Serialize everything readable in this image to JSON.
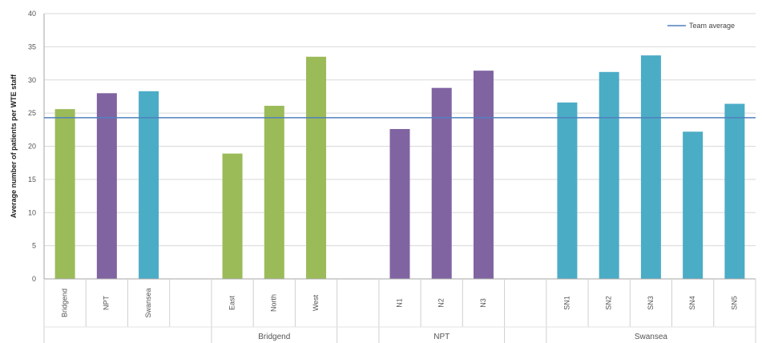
{
  "chart_data": {
    "type": "bar",
    "ylabel": "Average number of patients per WTE staff",
    "ylim": [
      0,
      40
    ],
    "yticks": [
      0,
      5,
      10,
      15,
      20,
      25,
      30,
      35,
      40
    ],
    "grid": true,
    "legend_position": "top-right",
    "categories": [
      "Bridgend",
      "NPT",
      "Swansea",
      "",
      "East",
      "North",
      "West",
      "",
      "N1",
      "N2",
      "N3",
      "",
      "SN1",
      "SN2",
      "SN3",
      "SN4",
      "SN5"
    ],
    "values": [
      25.6,
      28.0,
      28.3,
      null,
      18.9,
      26.1,
      33.5,
      null,
      22.6,
      28.8,
      31.4,
      null,
      26.6,
      31.2,
      33.7,
      22.2,
      26.4
    ],
    "bar_colors": [
      "#9bbb59",
      "#8064a2",
      "#4bacc6",
      null,
      "#9bbb59",
      "#9bbb59",
      "#9bbb59",
      null,
      "#8064a2",
      "#8064a2",
      "#8064a2",
      null,
      "#4bacc6",
      "#4bacc6",
      "#4bacc6",
      "#4bacc6",
      "#4bacc6"
    ],
    "groups": [
      {
        "label": "Bridgend",
        "start": 4,
        "end": 6
      },
      {
        "label": "NPT",
        "start": 8,
        "end": 10
      },
      {
        "label": "Swansea",
        "start": 12,
        "end": 16
      }
    ],
    "reference_line": {
      "name": "Team average",
      "value": 24.3,
      "color": "#4f81bd"
    }
  }
}
